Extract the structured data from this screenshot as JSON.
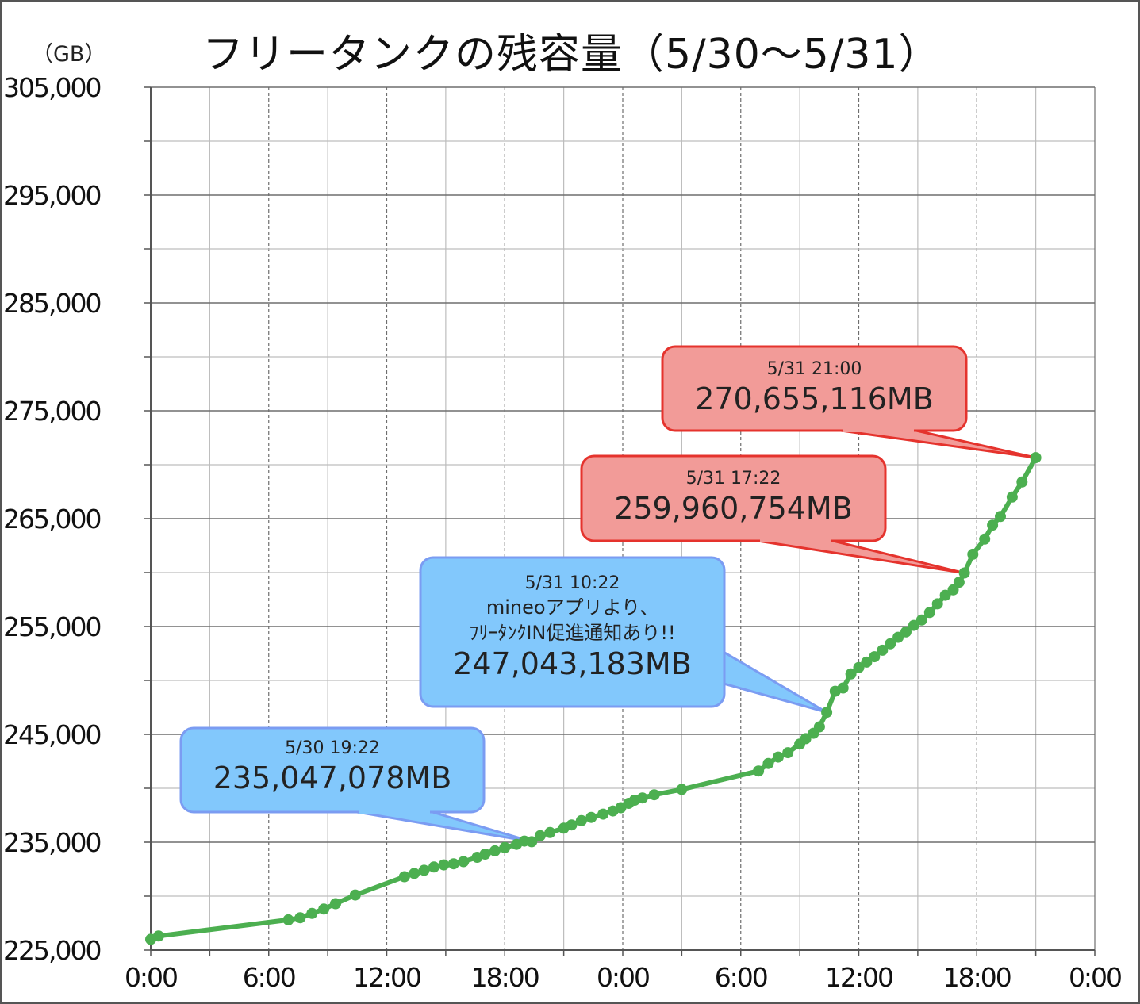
{
  "chart_data": {
    "type": "line",
    "title": "フリータンクの残容量（5/30〜5/31）",
    "ylabel": "（GB）",
    "xlabel": "",
    "ylim": [
      225000,
      305000
    ],
    "yticks": [
      225000,
      235000,
      245000,
      255000,
      265000,
      275000,
      285000,
      295000,
      305000
    ],
    "ytick_labels": [
      "225,000",
      "235,000",
      "245,000",
      "255,000",
      "265,000",
      "275,000",
      "285,000",
      "295,000",
      "305,000"
    ],
    "xlim_hours": [
      0,
      48
    ],
    "xtick_hours": [
      0,
      6,
      12,
      18,
      24,
      30,
      36,
      42,
      48
    ],
    "xtick_labels": [
      "0:00",
      "6:00",
      "12:00",
      "18:00",
      "0:00",
      "6:00",
      "12:00",
      "18:00",
      "0:00"
    ],
    "grid": true,
    "series": [
      {
        "color": "#4caf50",
        "points": [
          [
            0.0,
            226000
          ],
          [
            0.4,
            226300
          ],
          [
            7.0,
            227800
          ],
          [
            7.6,
            228000
          ],
          [
            8.2,
            228400
          ],
          [
            8.8,
            228800
          ],
          [
            9.4,
            229300
          ],
          [
            10.4,
            230100
          ],
          [
            12.9,
            231800
          ],
          [
            13.4,
            232100
          ],
          [
            13.9,
            232400
          ],
          [
            14.4,
            232700
          ],
          [
            14.9,
            232900
          ],
          [
            15.4,
            233000
          ],
          [
            15.9,
            233200
          ],
          [
            16.6,
            233600
          ],
          [
            17.0,
            233900
          ],
          [
            17.5,
            234200
          ],
          [
            18.0,
            234500
          ],
          [
            18.6,
            234800
          ],
          [
            19.0,
            235100
          ],
          [
            19.37,
            235047
          ],
          [
            19.8,
            235600
          ],
          [
            20.3,
            235900
          ],
          [
            21.0,
            236300
          ],
          [
            21.4,
            236600
          ],
          [
            21.9,
            237000
          ],
          [
            22.4,
            237300
          ],
          [
            23.0,
            237600
          ],
          [
            23.5,
            237900
          ],
          [
            23.9,
            238200
          ],
          [
            24.3,
            238600
          ],
          [
            24.6,
            238900
          ],
          [
            25.0,
            239100
          ],
          [
            25.6,
            239400
          ],
          [
            27.0,
            239900
          ],
          [
            30.9,
            241600
          ],
          [
            31.4,
            242300
          ],
          [
            31.9,
            242900
          ],
          [
            32.4,
            243300
          ],
          [
            33.0,
            244100
          ],
          [
            33.3,
            244600
          ],
          [
            33.7,
            245100
          ],
          [
            34.0,
            245700
          ],
          [
            34.37,
            247043
          ],
          [
            34.8,
            249000
          ],
          [
            35.2,
            249300
          ],
          [
            35.6,
            250600
          ],
          [
            36.0,
            251200
          ],
          [
            36.4,
            251700
          ],
          [
            36.8,
            252200
          ],
          [
            37.2,
            252800
          ],
          [
            37.6,
            253400
          ],
          [
            38.0,
            254000
          ],
          [
            38.4,
            254500
          ],
          [
            38.8,
            255100
          ],
          [
            39.2,
            255600
          ],
          [
            39.6,
            256300
          ],
          [
            40.0,
            257100
          ],
          [
            40.4,
            257900
          ],
          [
            40.8,
            258400
          ],
          [
            41.1,
            259100
          ],
          [
            41.37,
            259960
          ],
          [
            41.8,
            261700
          ],
          [
            42.4,
            263100
          ],
          [
            42.8,
            264400
          ],
          [
            43.2,
            265200
          ],
          [
            43.8,
            267000
          ],
          [
            44.3,
            268400
          ],
          [
            45.0,
            270655
          ]
        ]
      }
    ],
    "annotations": [
      {
        "date": "5/30 19:22",
        "note": [],
        "value": "235,047,078MB",
        "style": "blue"
      },
      {
        "date": "5/31 10:22",
        "note": [
          "mineoアプリより、",
          "ﾌﾘｰﾀﾝｸIN促進通知あり!!"
        ],
        "value": "247,043,183MB",
        "style": "blue"
      },
      {
        "date": "5/31 17:22",
        "note": [],
        "value": "259,960,754MB",
        "style": "red"
      },
      {
        "date": "5/31 21:00",
        "note": [],
        "value": "270,655,116MB",
        "style": "red"
      }
    ]
  }
}
